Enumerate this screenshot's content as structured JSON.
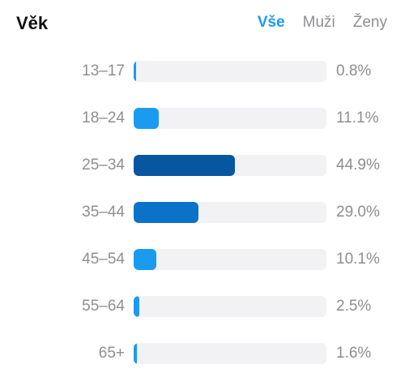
{
  "header": {
    "title": "Věk",
    "tabs": [
      {
        "label": "Vše",
        "active": true
      },
      {
        "label": "Muži",
        "active": false
      },
      {
        "label": "Ženy",
        "active": false
      }
    ]
  },
  "colors": {
    "accent": "#1a9bf0",
    "bar_light": "#1a9bf0",
    "bar_mid": "#0a72c8",
    "bar_dark": "#0757a0",
    "track": "#f2f2f4",
    "muted_text": "#8e8e93"
  },
  "chart_data": {
    "type": "bar",
    "orientation": "horizontal",
    "title": "Věk",
    "categories": [
      "13–17",
      "18–24",
      "25–34",
      "35–44",
      "45–54",
      "55–64",
      "65+"
    ],
    "values": [
      0.8,
      11.1,
      44.9,
      29.0,
      10.1,
      2.5,
      1.6
    ],
    "value_labels": [
      "0.8%",
      "11.1%",
      "44.9%",
      "29.0%",
      "10.1%",
      "2.5%",
      "1.6%"
    ],
    "xlim": [
      0,
      100
    ],
    "grid": false,
    "legend": "none"
  }
}
